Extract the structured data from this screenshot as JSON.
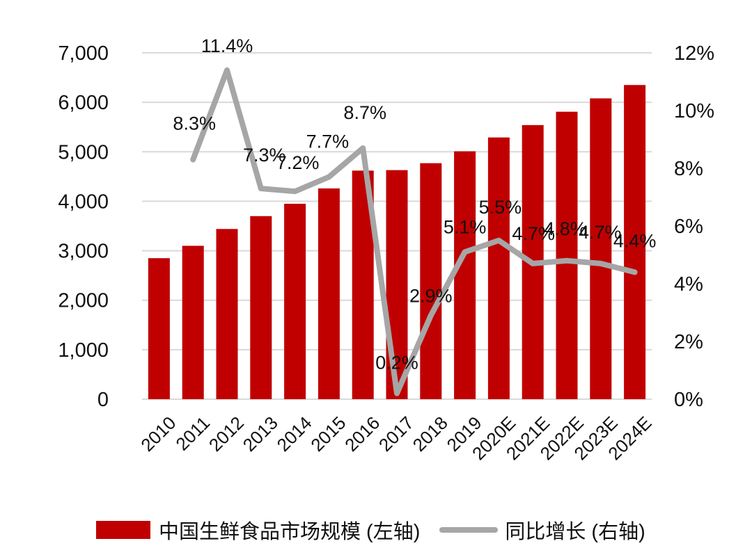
{
  "chart_data": {
    "type": "bar+line",
    "categories": [
      "2010",
      "2011",
      "2012",
      "2013",
      "2014",
      "2015",
      "2016",
      "2017",
      "2018",
      "2019",
      "2020E",
      "2021E",
      "2022E",
      "2023E",
      "2024E"
    ],
    "series": [
      {
        "name": "中国生鲜食品市场规模 (左轴)",
        "type": "bar",
        "axis": "left",
        "color": "#c00000",
        "values": [
          2850,
          3100,
          3440,
          3700,
          3950,
          4260,
          4620,
          4630,
          4770,
          5010,
          5290,
          5540,
          5810,
          6080,
          6350
        ]
      },
      {
        "name": "同比增长 (右轴)",
        "type": "line",
        "axis": "right",
        "color": "#a6a6a6",
        "values": [
          null,
          8.3,
          11.4,
          7.3,
          7.2,
          7.7,
          8.7,
          0.2,
          2.9,
          5.1,
          5.5,
          4.7,
          4.8,
          4.7,
          4.4
        ],
        "labels": [
          "",
          "8.3%",
          "11.4%",
          "7.3%",
          "7.2%",
          "7.7%",
          "8.7%",
          "0.2%",
          "2.9%",
          "5.1%",
          "5.5%",
          "4.7%",
          "4.8%",
          "4.7%",
          "4.4%"
        ]
      }
    ],
    "left_axis": {
      "min": 0,
      "max": 7000,
      "ticks": [
        "0",
        "1,000",
        "2,000",
        "3,000",
        "4,000",
        "5,000",
        "6,000",
        "7,000"
      ]
    },
    "right_axis": {
      "min": 0,
      "max": 12,
      "ticks": [
        "0%",
        "2%",
        "4%",
        "6%",
        "8%",
        "10%",
        "12%"
      ]
    },
    "grid": true,
    "legend_position": "bottom"
  },
  "legend": {
    "bar_label": "中国生鲜食品市场规模 (左轴)",
    "line_label": "同比增长 (右轴)"
  }
}
